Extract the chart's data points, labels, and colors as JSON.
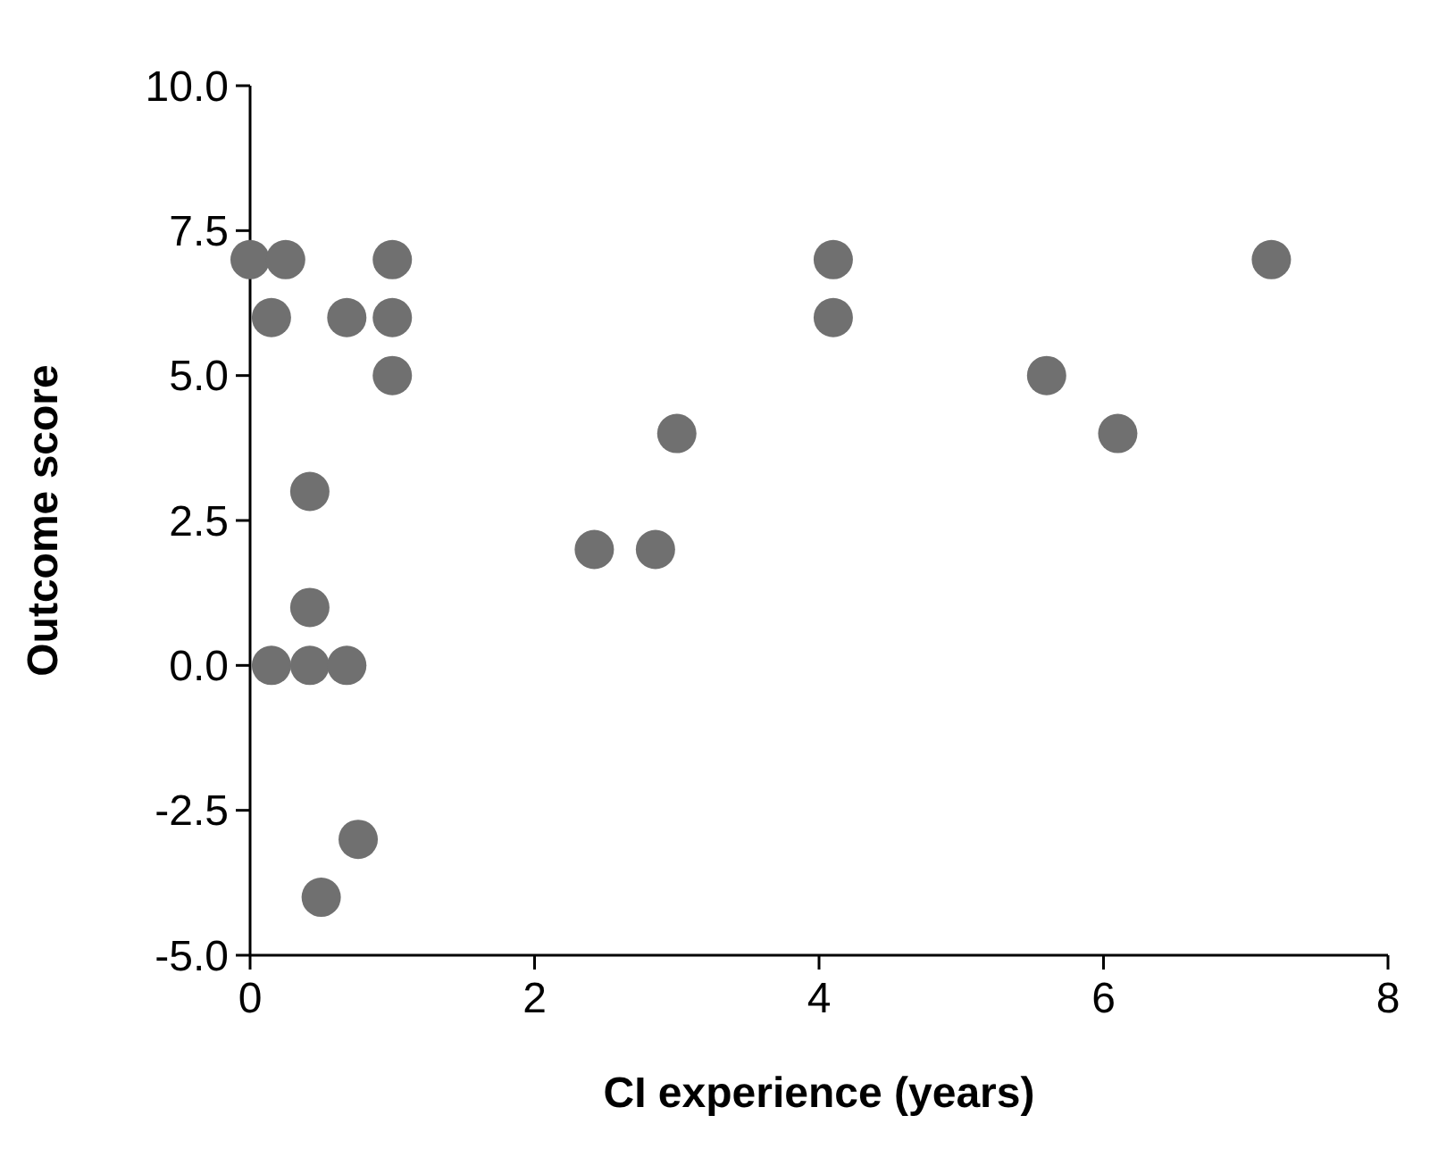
{
  "chart_data": {
    "type": "scatter",
    "xlabel": "CI experience (years)",
    "ylabel": "Outcome score",
    "x": [
      0,
      0.25,
      0.15,
      0.68,
      1,
      1,
      1,
      0.42,
      0.42,
      0.15,
      0.42,
      0.68,
      0.5,
      0.76,
      2.42,
      2.85,
      3,
      4.1,
      4.1,
      5.6,
      6.1,
      7.18
    ],
    "values": [
      7,
      7,
      6,
      6,
      7,
      6,
      5,
      3,
      1,
      0,
      0,
      0,
      -4,
      -3,
      2,
      2,
      4,
      7,
      6,
      5,
      4,
      7
    ],
    "color": "#707070",
    "marker": "circle",
    "xlim": [
      0,
      8
    ],
    "xticks": [
      0,
      2,
      4,
      6,
      8
    ],
    "ylim": [
      -5,
      10
    ],
    "yticks": [
      {
        "value": -5,
        "label": "-5.0"
      },
      {
        "value": -2.5,
        "label": "-2.5"
      },
      {
        "value": 0,
        "label": "0.0"
      },
      {
        "value": 2.5,
        "label": "2.5"
      },
      {
        "value": 5,
        "label": "5.0"
      },
      {
        "value": 7.5,
        "label": "7.5"
      },
      {
        "value": 10,
        "label": "10.0"
      }
    ],
    "grid": false
  }
}
